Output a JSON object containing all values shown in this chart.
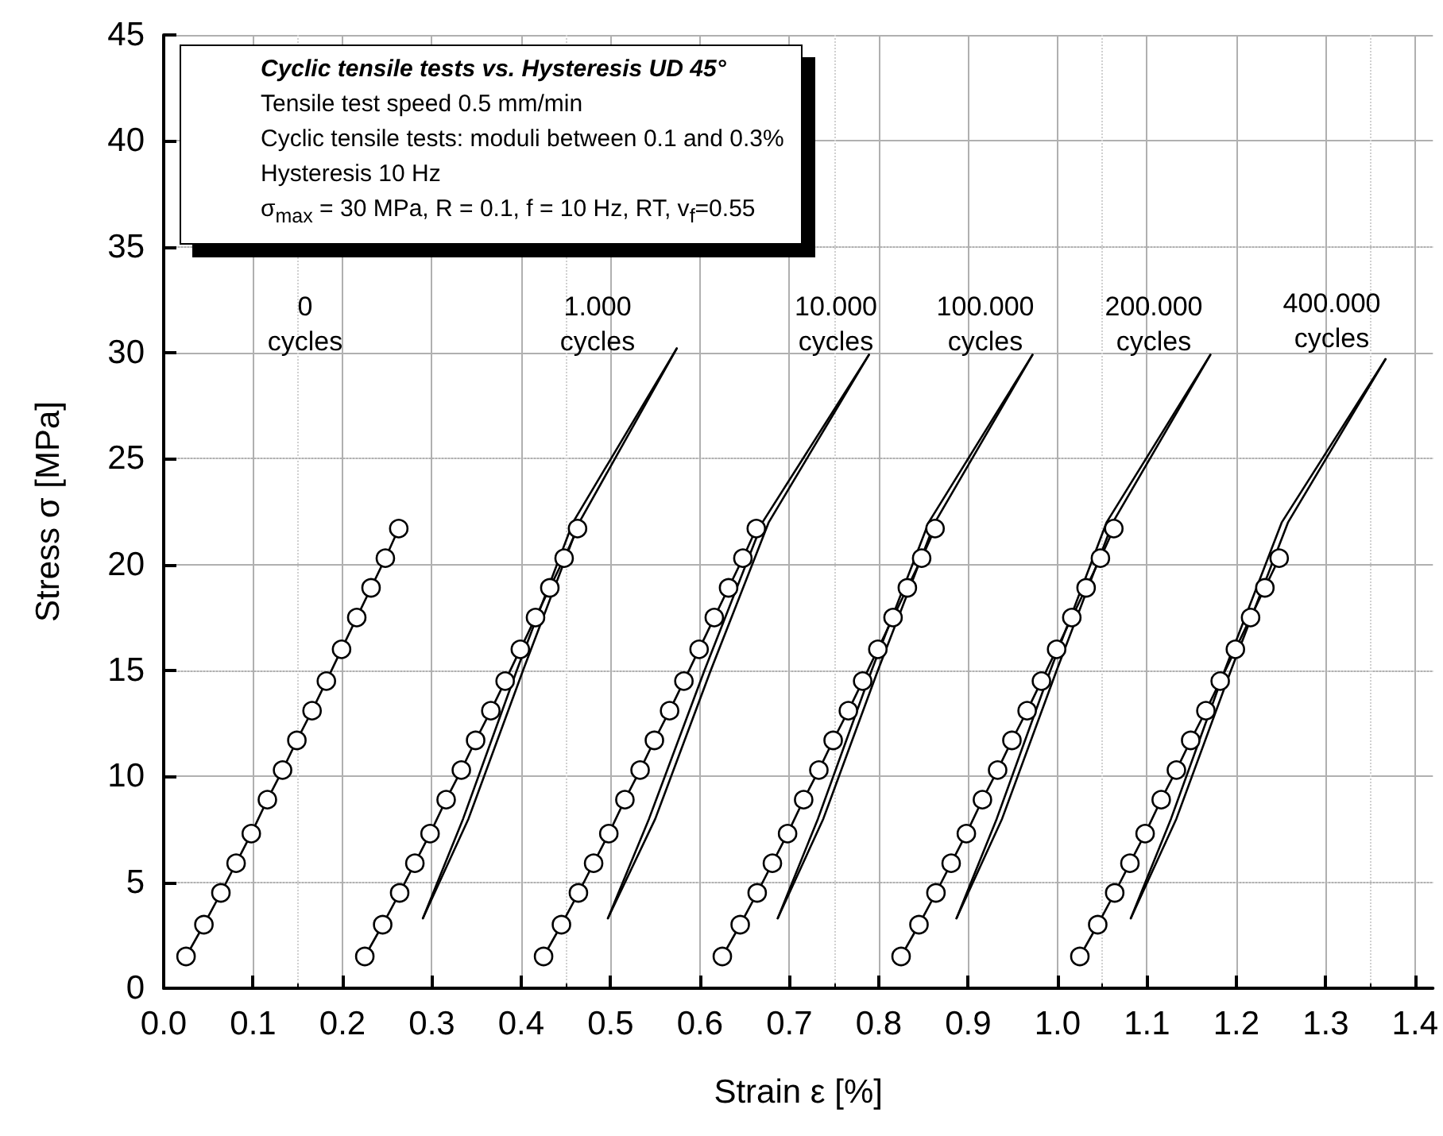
{
  "chart_data": {
    "type": "line",
    "title": "Cyclic tensile tests vs. Hysteresis UD 45°",
    "xlabel": "Strain ε [%]",
    "ylabel": "Stress σ [MPa]",
    "xlim": [
      0,
      1.42
    ],
    "xticks": [
      {
        "value": 0,
        "label": "0.0"
      },
      {
        "value": 0.1,
        "label": "0.1"
      },
      {
        "value": 0.2,
        "label": "0.2"
      },
      {
        "value": 0.3,
        "label": "0.3"
      },
      {
        "value": 0.4,
        "label": "0.4"
      },
      {
        "value": 0.5,
        "label": "0.5"
      },
      {
        "value": 0.6,
        "label": "0.6"
      },
      {
        "value": 0.7,
        "label": "0.7"
      },
      {
        "value": 0.8,
        "label": "0.8"
      },
      {
        "value": 0.9,
        "label": "0.9"
      },
      {
        "value": 1,
        "label": "1.0"
      },
      {
        "value": 1.1,
        "label": "1.1"
      },
      {
        "value": 1.2,
        "label": "1.2"
      },
      {
        "value": 1.3,
        "label": "1.3"
      },
      {
        "value": 1.4,
        "label": "1.4"
      }
    ],
    "ylim": [
      0,
      45
    ],
    "yticks": [
      0,
      5,
      10,
      15,
      20,
      25,
      30,
      35,
      40,
      45
    ],
    "grid": true,
    "annotations": [
      "Tensile test speed 0.5 mm/min",
      "Cyclic tensile tests: moduli between 0.1 and 0.3%",
      "Hysteresis 10 Hz",
      "σ$_{max}$ = 30 MPa, R = 0.1, f = 10 Hz, RT, v$_{f}$=0.55",
      "0\ncycles",
      "1.000\ncycles",
      "10.000\ncycles",
      "100.000\ncycles",
      "200.000\ncycles",
      "400.000\ncycles"
    ],
    "series": [
      {
        "marker": "circle",
        "color": "#000000",
        "x": [
          0.025,
          0.045,
          0.064,
          0.081,
          0.098,
          0.116,
          0.133,
          0.149,
          0.166,
          0.182,
          0.199,
          0.216,
          0.232,
          0.248,
          0.263
        ],
        "values": [
          1.5,
          3.0,
          4.5,
          5.9,
          7.3,
          8.9,
          10.3,
          11.7,
          13.1,
          14.5,
          16.0,
          17.5,
          18.9,
          20.3,
          21.7
        ]
      },
      {
        "marker": "circle",
        "color": "#000000",
        "x": [
          0.225,
          0.245,
          0.264,
          0.281,
          0.298,
          0.316,
          0.333,
          0.349,
          0.366,
          0.382,
          0.399,
          0.416,
          0.432,
          0.448,
          0.463
        ],
        "values": [
          1.5,
          3.0,
          4.5,
          5.9,
          7.3,
          8.9,
          10.3,
          11.7,
          13.1,
          14.5,
          16.0,
          17.5,
          18.9,
          20.3,
          21.7
        ]
      },
      {
        "marker": "circle",
        "color": "#000000",
        "x": [
          0.425,
          0.445,
          0.464,
          0.481,
          0.498,
          0.516,
          0.533,
          0.549,
          0.566,
          0.582,
          0.599,
          0.616,
          0.632,
          0.648,
          0.663
        ],
        "values": [
          1.5,
          3.0,
          4.5,
          5.9,
          7.3,
          8.9,
          10.3,
          11.7,
          13.1,
          14.5,
          16.0,
          17.5,
          18.9,
          20.3,
          21.7
        ]
      },
      {
        "marker": "circle",
        "color": "#000000",
        "x": [
          0.625,
          0.645,
          0.664,
          0.681,
          0.698,
          0.716,
          0.733,
          0.749,
          0.766,
          0.782,
          0.799,
          0.816,
          0.832,
          0.848,
          0.863
        ],
        "values": [
          1.5,
          3.0,
          4.5,
          5.9,
          7.3,
          8.9,
          10.3,
          11.7,
          13.1,
          14.5,
          16.0,
          17.5,
          18.9,
          20.3,
          21.7
        ]
      },
      {
        "marker": "circle",
        "color": "#000000",
        "x": [
          0.825,
          0.845,
          0.864,
          0.881,
          0.898,
          0.916,
          0.933,
          0.949,
          0.966,
          0.982,
          0.999,
          1.016,
          1.032,
          1.048,
          1.063
        ],
        "values": [
          1.5,
          3.0,
          4.5,
          5.9,
          7.3,
          8.9,
          10.3,
          11.7,
          13.1,
          14.5,
          16.0,
          17.5,
          18.9,
          20.3,
          21.7
        ]
      },
      {
        "marker": "circle",
        "color": "#000000",
        "x": [
          1.025,
          1.045,
          1.064,
          1.081,
          1.098,
          1.116,
          1.133,
          1.149,
          1.166,
          1.182,
          1.199,
          1.216,
          1.232,
          1.248
        ],
        "values": [
          1.5,
          3.0,
          4.5,
          5.9,
          7.3,
          8.9,
          10.3,
          11.7,
          13.1,
          14.5,
          16.0,
          17.5,
          18.9,
          20.3
        ]
      },
      {
        "marker": "none",
        "color": "#000000",
        "x": [
          0.29,
          0.341,
          0.402,
          0.465,
          0.574
        ],
        "values": [
          3.3,
          8,
          15,
          22,
          30.2
        ]
      },
      {
        "marker": "none",
        "color": "#000000",
        "x": [
          0.29,
          0.335,
          0.395,
          0.458,
          0.574
        ],
        "values": [
          3.3,
          8,
          15,
          22,
          30.2
        ]
      },
      {
        "marker": "none",
        "color": "#000000",
        "x": [
          0.497,
          0.55,
          0.612,
          0.677,
          0.789
        ],
        "values": [
          3.3,
          8,
          15,
          22,
          29.9
        ]
      },
      {
        "marker": "none",
        "color": "#000000",
        "x": [
          0.497,
          0.543,
          0.605,
          0.67,
          0.789
        ],
        "values": [
          3.3,
          8,
          15,
          22,
          29.9
        ]
      },
      {
        "marker": "none",
        "color": "#000000",
        "x": [
          0.687,
          0.738,
          0.799,
          0.863,
          0.972
        ],
        "values": [
          3.3,
          8,
          15,
          22,
          29.9
        ]
      },
      {
        "marker": "none",
        "color": "#000000",
        "x": [
          0.687,
          0.732,
          0.792,
          0.856,
          0.972
        ],
        "values": [
          3.3,
          8,
          15,
          22,
          29.9
        ]
      },
      {
        "marker": "none",
        "color": "#000000",
        "x": [
          0.887,
          0.938,
          0.999,
          1.062,
          1.171
        ],
        "values": [
          3.3,
          8,
          15,
          22,
          29.9
        ]
      },
      {
        "marker": "none",
        "color": "#000000",
        "x": [
          0.887,
          0.932,
          0.992,
          1.055,
          1.171
        ],
        "values": [
          3.3,
          8,
          15,
          22,
          29.9
        ]
      },
      {
        "marker": "none",
        "color": "#000000",
        "x": [
          1.082,
          1.133,
          1.194,
          1.258,
          1.367
        ],
        "values": [
          3.3,
          8,
          15,
          22,
          29.7
        ]
      },
      {
        "marker": "none",
        "color": "#000000",
        "x": [
          1.082,
          1.127,
          1.187,
          1.251,
          1.367
        ],
        "values": [
          3.3,
          8,
          15,
          22,
          29.7
        ]
      }
    ]
  }
}
